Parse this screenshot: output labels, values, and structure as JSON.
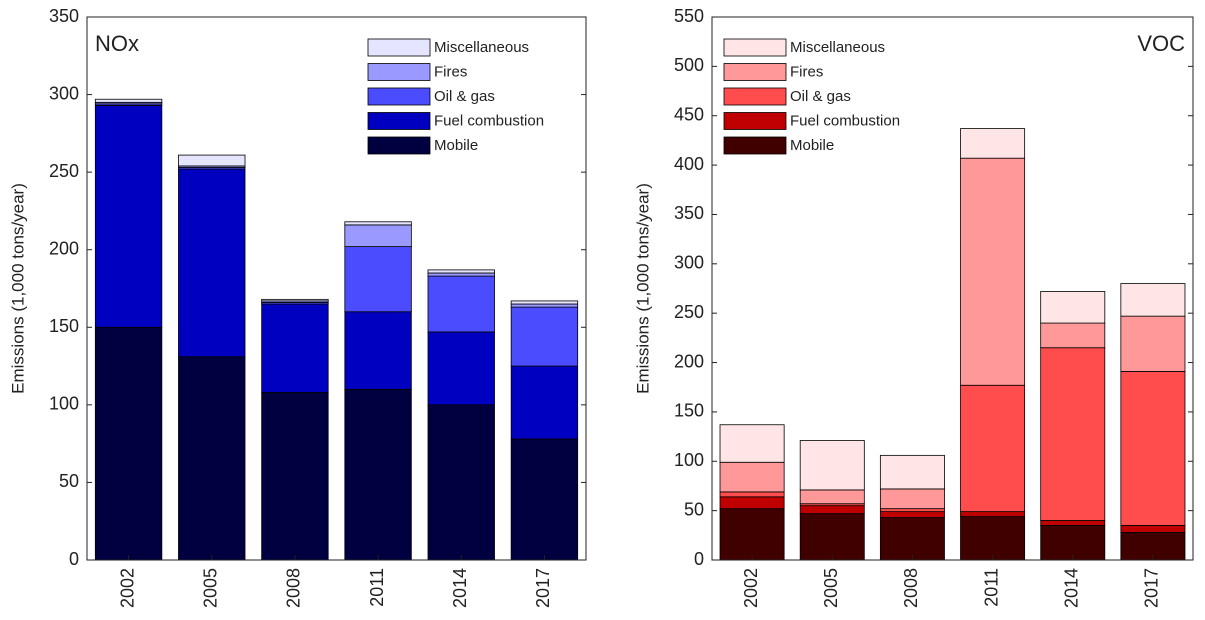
{
  "chart_data": [
    {
      "type": "bar",
      "stacked": true,
      "label": "NOx",
      "ylabel": "Emissions (1,000 tons/year)",
      "categories": [
        "2002",
        "2005",
        "2008",
        "2011",
        "2014",
        "2017"
      ],
      "ylim": [
        0,
        350
      ],
      "yticks": [
        0,
        50,
        100,
        150,
        200,
        250,
        300,
        350
      ],
      "legend": "upper right",
      "series": [
        {
          "name": "Mobile",
          "color": "#000040",
          "values": [
            150,
            131,
            108,
            110,
            100,
            78
          ]
        },
        {
          "name": "Fuel combustion",
          "color": "#0000c0",
          "values": [
            143,
            121,
            57,
            50,
            47,
            47
          ]
        },
        {
          "name": "Oil & gas",
          "color": "#4c4cff",
          "values": [
            1,
            1,
            1,
            42,
            36,
            38
          ]
        },
        {
          "name": "Fires",
          "color": "#9999ff",
          "values": [
            1,
            1,
            1,
            14,
            2,
            2
          ]
        },
        {
          "name": "Miscellaneous",
          "color": "#e5e5ff",
          "values": [
            2,
            7,
            1,
            2,
            2,
            2
          ]
        }
      ]
    },
    {
      "type": "bar",
      "stacked": true,
      "label": "VOC",
      "ylabel": "Emissions (1,000 tons/year)",
      "categories": [
        "2002",
        "2005",
        "2008",
        "2011",
        "2014",
        "2017"
      ],
      "ylim": [
        0,
        550
      ],
      "yticks": [
        0,
        50,
        100,
        150,
        200,
        250,
        300,
        350,
        400,
        450,
        500,
        550
      ],
      "legend": "upper left",
      "series": [
        {
          "name": "Mobile",
          "color": "#400000",
          "values": [
            52,
            47,
            43,
            44,
            35,
            28
          ]
        },
        {
          "name": "Fuel combustion",
          "color": "#c00000",
          "values": [
            12,
            8,
            6,
            5,
            5,
            7
          ]
        },
        {
          "name": "Oil & gas",
          "color": "#ff4c4c",
          "values": [
            5,
            2,
            3,
            128,
            175,
            156
          ]
        },
        {
          "name": "Fires",
          "color": "#ff9999",
          "values": [
            30,
            14,
            20,
            230,
            25,
            56
          ]
        },
        {
          "name": "Miscellaneous",
          "color": "#ffe5e5",
          "values": [
            38,
            50,
            34,
            30,
            32,
            33
          ]
        }
      ]
    }
  ]
}
